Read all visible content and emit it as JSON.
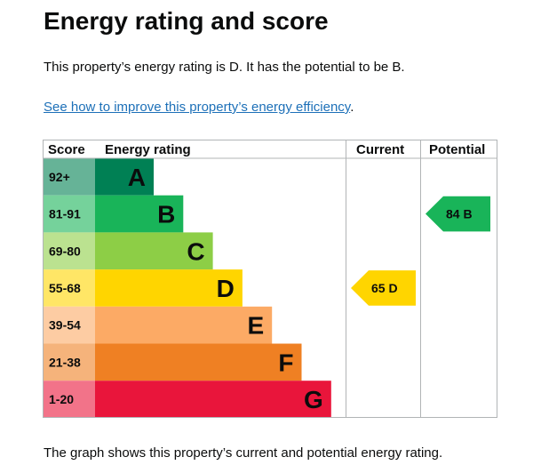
{
  "page": {
    "title": "Energy rating and score",
    "summary": "This property’s energy rating is D. It has the potential to be B.",
    "link_text": "See how to improve this property’s energy efficiency",
    "link_suffix": ".",
    "footnote": "The graph shows this property’s current and potential energy rating."
  },
  "chart_data": {
    "type": "bar",
    "headers": {
      "score": "Score",
      "rating": "Energy rating",
      "current": "Current",
      "potential": "Potential"
    },
    "bands": [
      {
        "score": "92+",
        "letter": "A",
        "color": "#008054",
        "score_bg": "#66b397",
        "level": 1
      },
      {
        "score": "81-91",
        "letter": "B",
        "color": "#19b459",
        "score_bg": "#75d29b",
        "level": 2
      },
      {
        "score": "69-80",
        "letter": "C",
        "color": "#8dce46",
        "score_bg": "#bbe290",
        "level": 3
      },
      {
        "score": "55-68",
        "letter": "D",
        "color": "#ffd500",
        "score_bg": "#ffe666",
        "level": 4
      },
      {
        "score": "39-54",
        "letter": "E",
        "color": "#fcaa65",
        "score_bg": "#fdcca3",
        "level": 5
      },
      {
        "score": "21-38",
        "letter": "F",
        "color": "#ef8023",
        "score_bg": "#f5b37b",
        "level": 6
      },
      {
        "score": "1-20",
        "letter": "G",
        "color": "#e9153b",
        "score_bg": "#f27389",
        "level": 7
      }
    ],
    "current": {
      "score": 65,
      "letter": "D",
      "color": "#ffd500"
    },
    "potential": {
      "score": 84,
      "letter": "B",
      "color": "#19b459"
    }
  }
}
